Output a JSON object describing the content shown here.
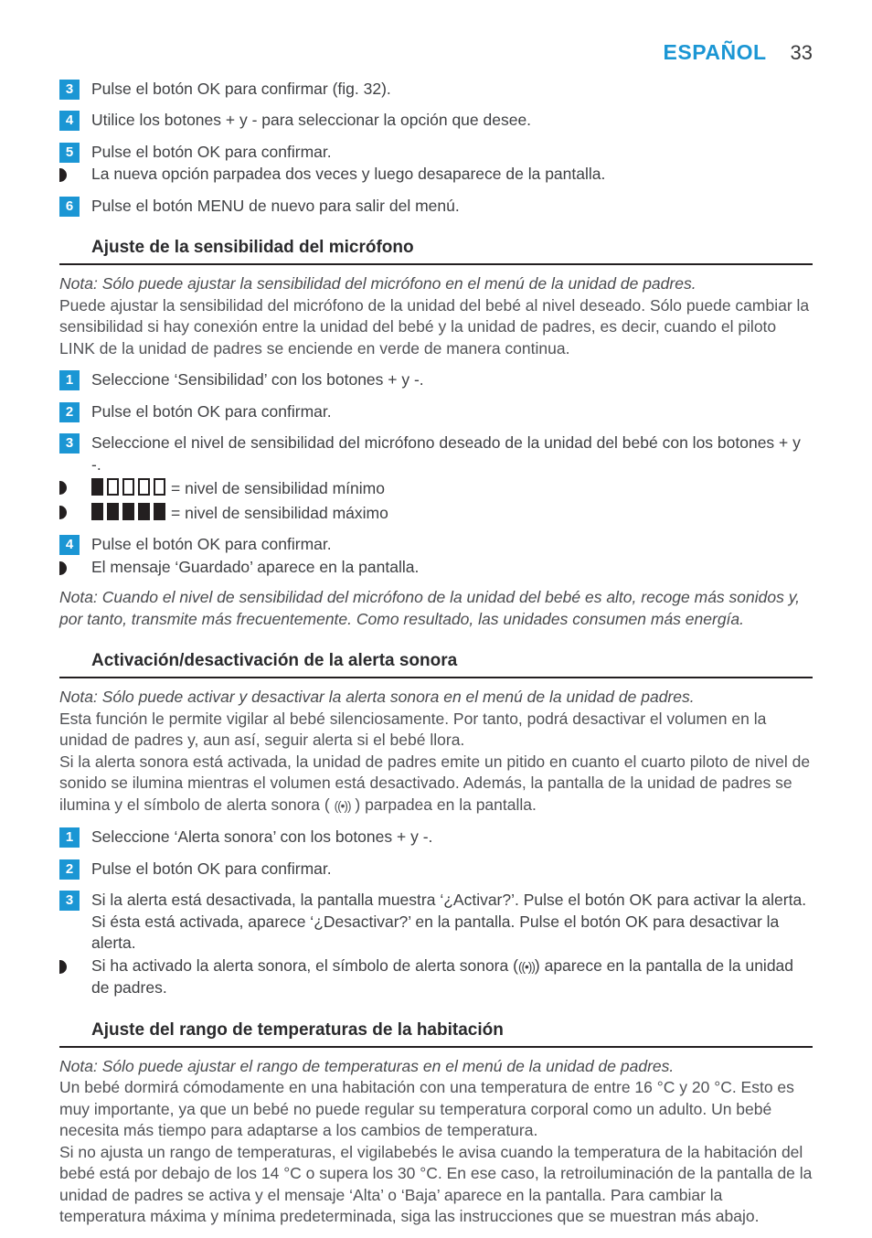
{
  "header": {
    "language": "ESPAÑOL",
    "page_number": "33"
  },
  "colors": {
    "accent_blue": "#1b96d4",
    "heading_black": "#231f20",
    "body_gray": "#4e4f52"
  },
  "intro": {
    "steps": [
      {
        "num": "3",
        "text": "Pulse el botón OK para confirmar (fig. 32)."
      },
      {
        "num": "4",
        "text": "Utilice los botones + y - para seleccionar la opción que desee."
      },
      {
        "num": "5",
        "text": "Pulse el botón OK para confirmar."
      }
    ],
    "bullet": "La nueva opción parpadea dos veces y luego desaparece de la pantalla.",
    "step_final": {
      "num": "6",
      "text": "Pulse el botón MENU de nuevo para salir del menú."
    }
  },
  "section_mic": {
    "title": "Ajuste de la sensibilidad del micrófono",
    "note": "Nota: Sólo puede ajustar la sensibilidad del micrófono en el menú de la unidad de padres.",
    "body": "Puede ajustar la sensibilidad del micrófono de la unidad del bebé al nivel deseado. Sólo puede cambiar la sensibilidad si hay conexión entre la unidad del bebé y la unidad de padres, es decir, cuando el piloto LINK de la unidad de padres se enciende en verde de manera continua.",
    "steps": [
      {
        "num": "1",
        "text": "Seleccione ‘Sensibilidad’ con los botones + y -."
      },
      {
        "num": "2",
        "text": "Pulse el botón OK para confirmar."
      },
      {
        "num": "3",
        "text": "Seleccione el nivel de sensibilidad del micrófono deseado de la unidad del bebé con los botones + y -."
      },
      {
        "num": "4",
        "text": "Pulse el botón OK para confirmar."
      }
    ],
    "level_min_label": "= nivel de sensibilidad mínimo",
    "level_max_label": "= nivel de sensibilidad máximo",
    "bullet_saved": "El mensaje ‘Guardado’ aparece en la pantalla.",
    "note_end": "Nota: Cuando el nivel de sensibilidad del micrófono de la unidad del bebé es alto, recoge más sonidos y, por tanto, transmite más frecuentemente. Como resultado, las unidades consumen más energía."
  },
  "section_alert": {
    "title": "Activación/desactivación de la alerta sonora",
    "note": "Nota: Sólo puede activar y desactivar la alerta sonora en el menú de la unidad de padres.",
    "body1": "Esta función le permite vigilar al bebé silenciosamente. Por tanto, podrá desactivar el volumen en la unidad de padres y, aun así, seguir alerta si el bebé llora.",
    "body2_before": "Si la alerta sonora está activada, la unidad de padres emite un pitido en cuanto el cuarto piloto de nivel de sonido se ilumina mientras el volumen está desactivado. Además, la pantalla de la unidad de padres se ilumina y el símbolo de alerta sonora ( ",
    "alert_symbol": "((•))",
    "body2_after": " ) parpadea en la pantalla.",
    "steps": [
      {
        "num": "1",
        "text": "Seleccione ‘Alerta sonora’ con los botones + y -."
      },
      {
        "num": "2",
        "text": "Pulse el botón OK para confirmar."
      },
      {
        "num": "3",
        "text": "Si la alerta está desactivada, la pantalla muestra ‘¿Activar?’. Pulse el botón OK para activar la alerta. Si ésta está activada, aparece ‘¿Desactivar?’ en la pantalla. Pulse el botón OK para desactivar la alerta."
      }
    ],
    "bullet_before": "Si ha activado la alerta sonora, el símbolo de alerta sonora (",
    "bullet_after": ") aparece en la pantalla de la unidad de padres."
  },
  "section_temp": {
    "title": "Ajuste del rango de temperaturas de la habitación",
    "note": "Nota: Sólo puede ajustar el rango de temperaturas en el menú de la unidad de padres.",
    "body1": "Un bebé dormirá cómodamente en una habitación con una temperatura de entre 16 °C y 20 °C. Esto es muy importante, ya que un bebé no puede regular su temperatura corporal como un adulto. Un bebé necesita más tiempo para adaptarse a los cambios de temperatura.",
    "body2": "Si no ajusta un rango de temperaturas, el vigilabebés le avisa cuando la temperatura de la habitación del bebé está por debajo de los 14 °C o supera los 30 °C. En ese caso, la retroiluminación de la pantalla de la unidad de padres se activa y el mensaje ‘Alta’ o ‘Baja’ aparece en la pantalla. Para cambiar la temperatura máxima y mínima predeterminada, siga las instrucciones que se muestran más abajo."
  }
}
